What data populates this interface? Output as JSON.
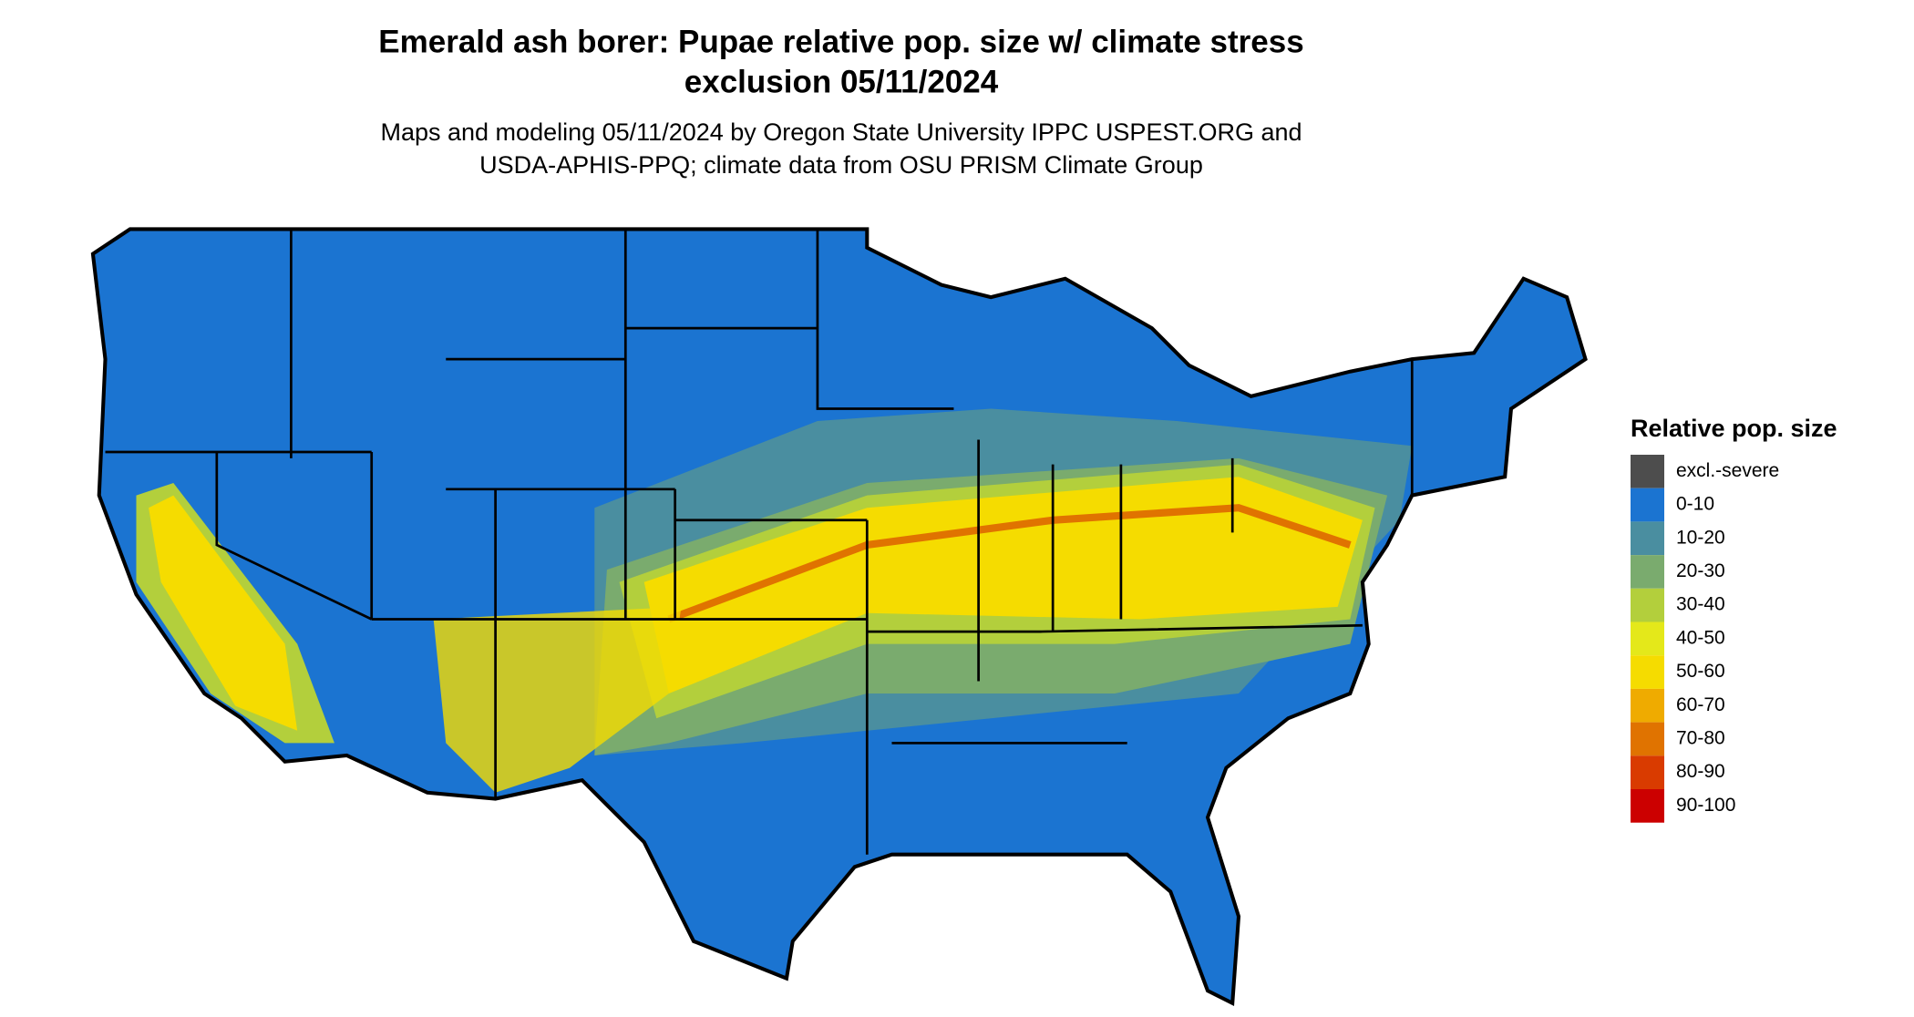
{
  "title": [
    "Emerald ash borer: Pupae relative pop. size w/ climate stress",
    "exclusion 05/11/2024"
  ],
  "subtitle": [
    "Maps and modeling 05/11/2024 by Oregon State University IPPC USPEST.ORG and",
    "USDA-APHIS-PPQ; climate data from OSU PRISM Climate Group"
  ],
  "legend": {
    "title": "Relative pop. size",
    "items": [
      {
        "label": "excl.-severe",
        "color": "#4d4d4d"
      },
      {
        "label": "0-10",
        "color": "#1b74d1"
      },
      {
        "label": "10-20",
        "color": "#4a8ea0"
      },
      {
        "label": "20-30",
        "color": "#7aab6e"
      },
      {
        "label": "30-40",
        "color": "#b3cf3c"
      },
      {
        "label": "40-50",
        "color": "#e4e81a"
      },
      {
        "label": "50-60",
        "color": "#f5dc00"
      },
      {
        "label": "60-70",
        "color": "#efab00"
      },
      {
        "label": "70-80",
        "color": "#e07300"
      },
      {
        "label": "80-90",
        "color": "#d93b00"
      },
      {
        "label": "90-100",
        "color": "#cc0000"
      }
    ]
  }
}
